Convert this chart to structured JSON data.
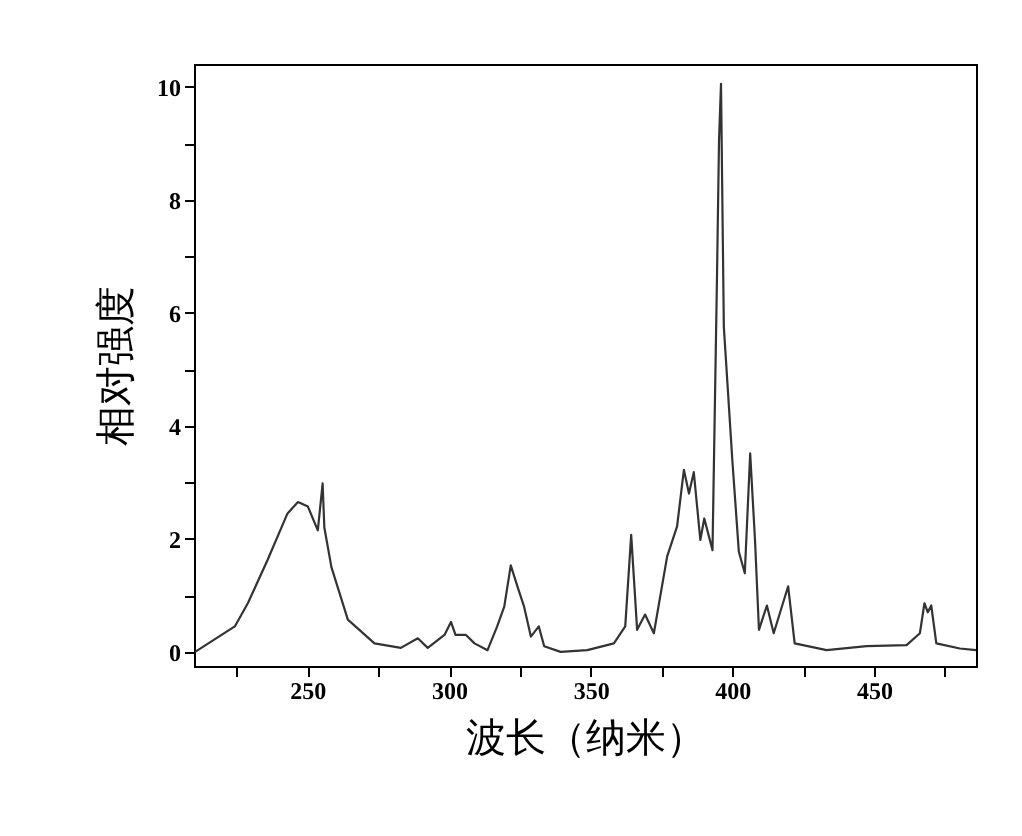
{
  "chart_data": {
    "type": "line",
    "xlabel": "波长（纳米）",
    "ylabel": "相对强度",
    "x": [
      210.4,
      224.4,
      229,
      236,
      243,
      246.7,
      250.2,
      253.7,
      255.4,
      256,
      258.5,
      264.3,
      273.7,
      283,
      289,
      292.5,
      298.4,
      300.7,
      302.3,
      306,
      309,
      313.6,
      317,
      319.5,
      321.8,
      324.2,
      326.5,
      328.9,
      331.7,
      333.6,
      339.4,
      348.8,
      358.2,
      362.2,
      364.3,
      366.4,
      369.2,
      372.3,
      377,
      380.5,
      382.9,
      384.7,
      386.4,
      388.7,
      390.1,
      393,
      394.6,
      395.3,
      396,
      397,
      400,
      402.3,
      404.4,
      406.3,
      408,
      409.4,
      412.2,
      414.6,
      419.7,
      422,
      433.3,
      447.4,
      461.5,
      466.2,
      467.8,
      469,
      470.2,
      472,
      480.3,
      486
    ],
    "series": [
      {
        "color": "#333333",
        "values": [
          0.0,
          0.45,
          0.86,
          1.63,
          2.45,
          2.65,
          2.57,
          2.15,
          2.98,
          2.2,
          1.5,
          0.57,
          0.15,
          0.07,
          0.24,
          0.07,
          0.3,
          0.53,
          0.3,
          0.3,
          0.15,
          0.03,
          0.45,
          0.8,
          1.53,
          1.15,
          0.8,
          0.27,
          0.45,
          0.1,
          0.0,
          0.03,
          0.15,
          0.45,
          2.07,
          0.39,
          0.66,
          0.33,
          1.69,
          2.22,
          3.22,
          2.8,
          3.18,
          1.98,
          2.36,
          1.8,
          6.69,
          9.05,
          10.05,
          5.75,
          3.39,
          1.77,
          1.39,
          3.51,
          1.98,
          0.39,
          0.82,
          0.33,
          1.16,
          0.15,
          0.03,
          0.1,
          0.12,
          0.33,
          0.86,
          0.7,
          0.82,
          0.15,
          0.06,
          0.03
        ]
      }
    ],
    "xlim": [
      210,
      486
    ],
    "xticks": [
      {
        "value": 225,
        "label": null
      },
      250,
      {
        "value": 275,
        "label": null
      },
      300,
      {
        "value": 325,
        "label": null
      },
      350,
      {
        "value": 375,
        "label": null
      },
      400,
      {
        "value": 425,
        "label": null
      },
      450,
      {
        "value": 475,
        "label": null
      }
    ],
    "ylim": [
      -0.25,
      10.4
    ],
    "yticks": [
      0,
      {
        "value": 1,
        "label": null
      },
      2,
      {
        "value": 3,
        "label": null
      },
      4,
      {
        "value": 5,
        "label": null
      },
      6,
      {
        "value": 7,
        "label": null
      },
      8,
      {
        "value": 9,
        "label": null
      },
      10
    ],
    "grid": false,
    "marker": "none",
    "line_style": "solid"
  }
}
